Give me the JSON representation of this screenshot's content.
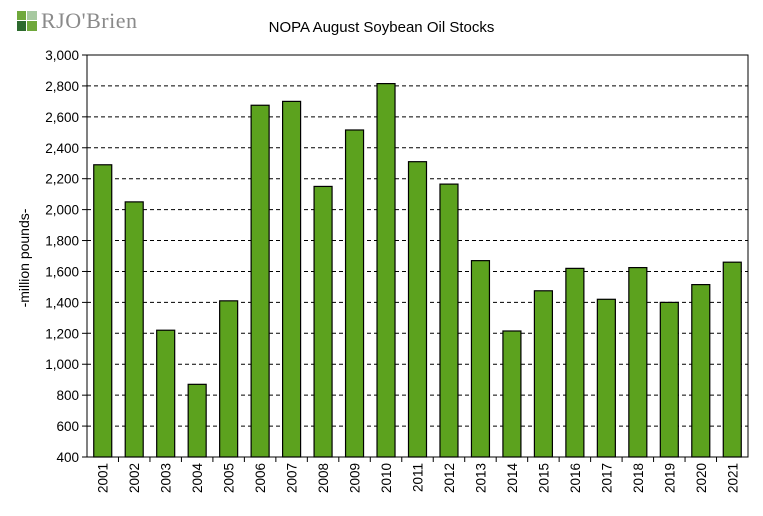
{
  "logo": {
    "text": "RJO'Brien",
    "colors": [
      "#6fa83b",
      "#2d6a2e",
      "#a7c9a0"
    ]
  },
  "chart_data": {
    "type": "bar",
    "title": "NOPA August Soybean Oil Stocks",
    "xlabel": "",
    "ylabel": "-million pounds-",
    "categories": [
      "2001",
      "2002",
      "2003",
      "2004",
      "2005",
      "2006",
      "2007",
      "2008",
      "2009",
      "2010",
      "2011",
      "2012",
      "2013",
      "2014",
      "2015",
      "2016",
      "2017",
      "2018",
      "2019",
      "2020",
      "2021"
    ],
    "values": [
      2290,
      2050,
      1220,
      870,
      1410,
      2675,
      2700,
      2150,
      2515,
      2815,
      2310,
      2165,
      1670,
      1215,
      1475,
      1620,
      1420,
      1625,
      1400,
      1515,
      1660
    ],
    "ylim": [
      400,
      3000
    ],
    "yticks": [
      "400",
      "600",
      "800",
      "1,000",
      "1,200",
      "1,400",
      "1,600",
      "1,800",
      "2,000",
      "2,200",
      "2,400",
      "2,600",
      "2,800",
      "3,000"
    ],
    "bar_color": "#5ca21e",
    "grid": true
  }
}
